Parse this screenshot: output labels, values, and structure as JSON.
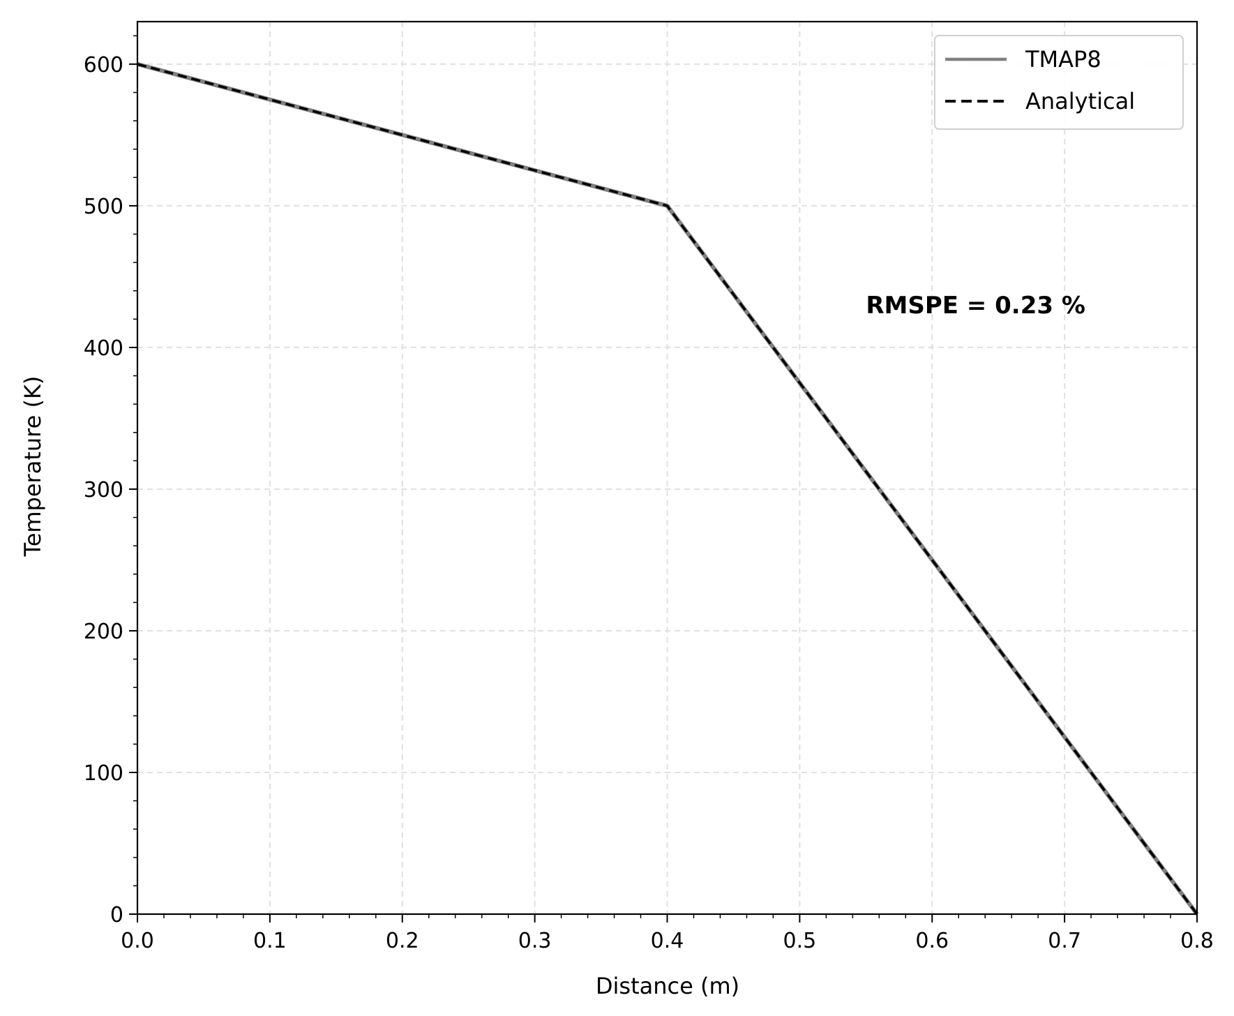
{
  "chart_data": {
    "type": "line",
    "xlabel": "Distance (m)",
    "ylabel": "Temperature (K)",
    "xlim": [
      0,
      0.8
    ],
    "ylim": [
      0,
      630
    ],
    "xticks": [
      0.0,
      0.1,
      0.2,
      0.3,
      0.4,
      0.5,
      0.6,
      0.7,
      0.8
    ],
    "xtick_labels": [
      "0.0",
      "0.1",
      "0.2",
      "0.3",
      "0.4",
      "0.5",
      "0.6",
      "0.7",
      "0.8"
    ],
    "yticks": [
      0,
      100,
      200,
      300,
      400,
      500,
      600
    ],
    "ytick_labels": [
      "0",
      "100",
      "200",
      "300",
      "400",
      "500",
      "600"
    ],
    "grid": true,
    "legend_position": "top-right",
    "series": [
      {
        "name": "TMAP8",
        "style": "solid",
        "color": "#808080",
        "x": [
          0.0,
          0.4,
          0.8
        ],
        "y": [
          600,
          500,
          0
        ]
      },
      {
        "name": "Analytical",
        "style": "dashed",
        "color": "#000000",
        "x": [
          0.0,
          0.4,
          0.8
        ],
        "y": [
          600,
          500,
          0
        ]
      }
    ],
    "annotations": [
      {
        "text": "RMSPE = 0.23 %",
        "x": 0.55,
        "y": 430
      }
    ]
  }
}
